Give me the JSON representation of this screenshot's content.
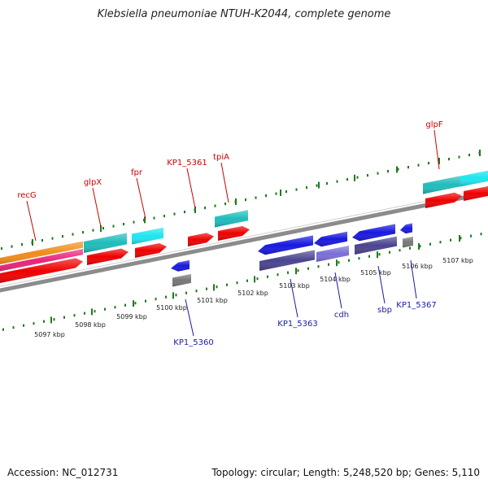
{
  "title": "Klebsiella pneumoniae NTUH-K2044, complete genome",
  "footer": {
    "accession": "Accession: NC_012731",
    "summary": "Topology: circular; Length: 5,248,520 bp; Genes: 5,110"
  },
  "colors": {
    "backbone": "#8c8c8c",
    "tick": "#1f7a1f",
    "forward_label": "#cc0000",
    "reverse_label": "#1a1aa8",
    "kbp_label": "#222222"
  },
  "kbp_ticks": [
    {
      "label": "5097 kbp"
    },
    {
      "label": "5098 kbp"
    },
    {
      "label": "5099 kbp"
    },
    {
      "label": "5100 kbp"
    },
    {
      "label": "5101 kbp"
    },
    {
      "label": "5102 kbp"
    },
    {
      "label": "5103 kbp"
    },
    {
      "label": "5104 kbp"
    },
    {
      "label": "5105 kbp"
    },
    {
      "label": "5106 kbp"
    },
    {
      "label": "5107 kbp"
    }
  ],
  "forward_gene_labels": [
    {
      "label": "recG"
    },
    {
      "label": "glpX"
    },
    {
      "label": "fpr"
    },
    {
      "label": "KP1_5361"
    },
    {
      "label": "tpiA"
    },
    {
      "label": "glpF"
    }
  ],
  "reverse_gene_labels": [
    {
      "label": "KP1_5360"
    },
    {
      "label": "KP1_5363"
    },
    {
      "label": "cdh"
    },
    {
      "label": "sbp"
    },
    {
      "label": "KP1_5367"
    }
  ]
}
